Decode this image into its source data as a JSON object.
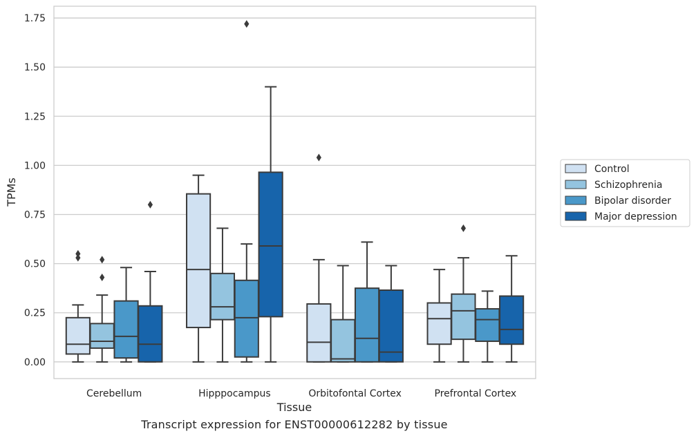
{
  "caption": "Transcript expression for ENST00000612282 by tissue",
  "chart_data": {
    "type": "box",
    "xlabel": "Tissue",
    "ylabel": "TPMs",
    "ylim": [
      -0.085,
      1.81
    ],
    "yticks": [
      "0.00",
      "0.25",
      "0.50",
      "0.75",
      "1.00",
      "1.25",
      "1.50",
      "1.75"
    ],
    "grid": "horizontal",
    "legend_position": "right",
    "categories": [
      "Cerebellum",
      "Hipppocampus",
      "Orbitofontal Cortex",
      "Prefrontal Cortex"
    ],
    "series": [
      {
        "name": "Control",
        "color": "#d0e1f2",
        "boxes": [
          {
            "min": 0.0,
            "q1": 0.04,
            "median": 0.09,
            "q3": 0.225,
            "max": 0.29,
            "outliers": [
              0.53,
              0.55
            ]
          },
          {
            "min": 0.0,
            "q1": 0.175,
            "median": 0.47,
            "q3": 0.855,
            "max": 0.95,
            "outliers": []
          },
          {
            "min": 0.0,
            "q1": 0.0,
            "median": 0.1,
            "q3": 0.295,
            "max": 0.52,
            "outliers": [
              1.04
            ]
          },
          {
            "min": 0.0,
            "q1": 0.09,
            "median": 0.22,
            "q3": 0.3,
            "max": 0.47,
            "outliers": []
          }
        ]
      },
      {
        "name": "Schizophrenia",
        "color": "#94c4df",
        "boxes": [
          {
            "min": 0.0,
            "q1": 0.07,
            "median": 0.105,
            "q3": 0.195,
            "max": 0.34,
            "outliers": [
              0.43,
              0.52
            ]
          },
          {
            "min": 0.0,
            "q1": 0.215,
            "median": 0.28,
            "q3": 0.45,
            "max": 0.68,
            "outliers": []
          },
          {
            "min": 0.0,
            "q1": 0.0,
            "median": 0.015,
            "q3": 0.215,
            "max": 0.49,
            "outliers": []
          },
          {
            "min": 0.0,
            "q1": 0.115,
            "median": 0.26,
            "q3": 0.345,
            "max": 0.53,
            "outliers": [
              0.68
            ]
          }
        ]
      },
      {
        "name": "Bipolar disorder",
        "color": "#4a98c9",
        "boxes": [
          {
            "min": 0.0,
            "q1": 0.02,
            "median": 0.13,
            "q3": 0.31,
            "max": 0.48,
            "outliers": []
          },
          {
            "min": 0.0,
            "q1": 0.025,
            "median": 0.225,
            "q3": 0.415,
            "max": 0.6,
            "outliers": [
              1.72
            ]
          },
          {
            "min": 0.0,
            "q1": 0.0,
            "median": 0.12,
            "q3": 0.375,
            "max": 0.61,
            "outliers": []
          },
          {
            "min": 0.0,
            "q1": 0.105,
            "median": 0.215,
            "q3": 0.27,
            "max": 0.36,
            "outliers": []
          }
        ]
      },
      {
        "name": "Major depression",
        "color": "#1764ab",
        "boxes": [
          {
            "min": 0.0,
            "q1": 0.0,
            "median": 0.09,
            "q3": 0.285,
            "max": 0.46,
            "outliers": [
              0.8
            ]
          },
          {
            "min": 0.0,
            "q1": 0.23,
            "median": 0.59,
            "q3": 0.965,
            "max": 1.4,
            "outliers": []
          },
          {
            "min": 0.0,
            "q1": 0.0,
            "median": 0.05,
            "q3": 0.365,
            "max": 0.49,
            "outliers": []
          },
          {
            "min": 0.0,
            "q1": 0.09,
            "median": 0.165,
            "q3": 0.335,
            "max": 0.54,
            "outliers": []
          }
        ]
      }
    ]
  }
}
